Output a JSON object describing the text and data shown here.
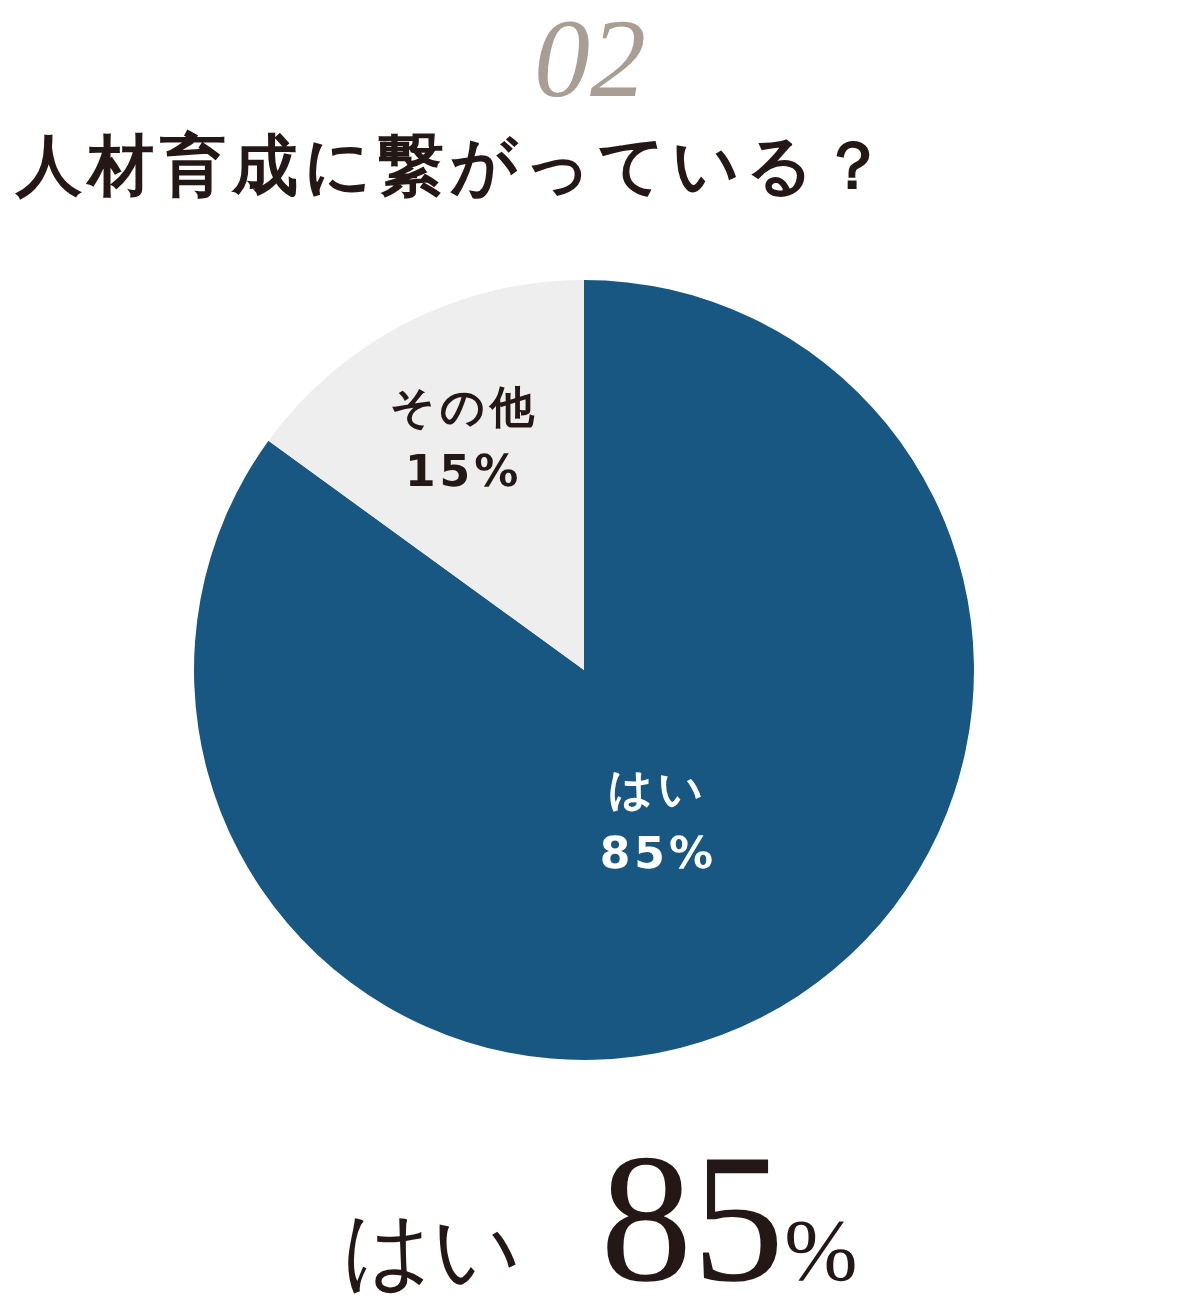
{
  "chart_data": {
    "type": "pie",
    "title": "人材育成に繋がっている？",
    "categories": [
      "はい",
      "その他"
    ],
    "values": [
      85,
      15
    ],
    "colors": [
      "#185782",
      "#eeeeee"
    ],
    "value_labels": [
      "85%",
      "15%"
    ],
    "annotations": [
      "02",
      "はい 85%"
    ]
  }
}
